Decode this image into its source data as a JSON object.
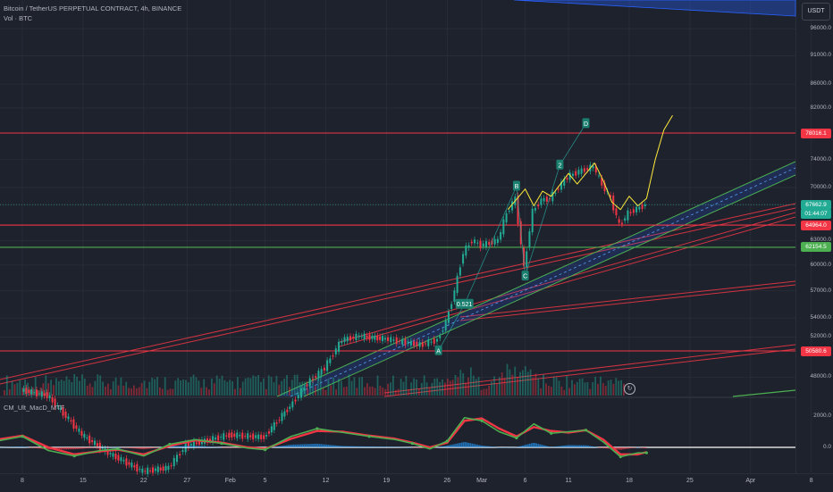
{
  "header": {
    "title": "Bitcoin / TetherUS PERPETUAL CONTRACT, 4h, BINANCE",
    "volume_label": "Vol · BTC",
    "indicator_label": "CM_Ult_MacD_MTF",
    "currency_button": "USDT"
  },
  "colors": {
    "background": "#1e222d",
    "grid": "#2a2e39",
    "up": "#22ab94",
    "down": "#f23645",
    "hline_red": "#f23645",
    "hline_green": "#4caf50",
    "pattern": "#26a69a",
    "projection": "#ffeb3b",
    "channel_blue": "#2962ff"
  },
  "chart_data": {
    "type": "candlestick",
    "symbol": "BTCUSDT.P",
    "timeframe": "4h",
    "exchange": "BINANCE",
    "price_axis": {
      "ticks": [
        "96000.0",
        "91000.0",
        "86000.0",
        "82000.0",
        "78016.1",
        "74000.0",
        "70000.0",
        "67662.9",
        "64964.0",
        "63000.0",
        "62154.5",
        "60000.0",
        "57000.0",
        "54000.0",
        "52000.0",
        "50580.6",
        "48000.0"
      ],
      "scale": "log",
      "range": [
        46500,
        100000
      ]
    },
    "time_axis": {
      "labels": [
        "8",
        "15",
        "22",
        "27",
        "Feb",
        "5",
        "12",
        "19",
        "26",
        "Mar",
        "6",
        "11",
        "18",
        "25",
        "Apr",
        "8"
      ],
      "x_dates": [
        "2024-01-08",
        "2024-01-15",
        "2024-01-22",
        "2024-01-27",
        "2024-02-01",
        "2024-02-05",
        "2024-02-12",
        "2024-02-19",
        "2024-02-26",
        "2024-03-01",
        "2024-03-06",
        "2024-03-11",
        "2024-03-18",
        "2024-03-25",
        "2024-04-01",
        "2024-04-08"
      ]
    },
    "price_series": [
      {
        "date": "2024-01-08",
        "close": 46800
      },
      {
        "date": "2024-01-11",
        "close": 46300
      },
      {
        "date": "2024-01-15",
        "close": 42800
      },
      {
        "date": "2024-01-18",
        "close": 41300
      },
      {
        "date": "2024-01-22",
        "close": 39800
      },
      {
        "date": "2024-01-25",
        "close": 40100
      },
      {
        "date": "2024-01-27",
        "close": 41900
      },
      {
        "date": "2024-02-01",
        "close": 42800
      },
      {
        "date": "2024-02-05",
        "close": 42600
      },
      {
        "date": "2024-02-08",
        "close": 45300
      },
      {
        "date": "2024-02-10",
        "close": 47400
      },
      {
        "date": "2024-02-12",
        "close": 48900
      },
      {
        "date": "2024-02-14",
        "close": 51700
      },
      {
        "date": "2024-02-16",
        "close": 52100
      },
      {
        "date": "2024-02-19",
        "close": 51800
      },
      {
        "date": "2024-02-21",
        "close": 51500
      },
      {
        "date": "2024-02-23",
        "close": 51200
      },
      {
        "date": "2024-02-25",
        "close": 51700
      },
      {
        "date": "2024-02-26",
        "close": 53500
      },
      {
        "date": "2024-02-27",
        "close": 57000
      },
      {
        "date": "2024-02-28",
        "close": 61500
      },
      {
        "date": "2024-02-29",
        "close": 63000
      },
      {
        "date": "2024-03-01",
        "close": 62400
      },
      {
        "date": "2024-03-03",
        "close": 63000
      },
      {
        "date": "2024-03-04",
        "close": 66500
      },
      {
        "date": "2024-03-05",
        "close": 68500
      },
      {
        "date": "2024-03-06",
        "close": 59500
      },
      {
        "date": "2024-03-07",
        "close": 66800
      },
      {
        "date": "2024-03-08",
        "close": 68300
      },
      {
        "date": "2024-03-09",
        "close": 68500
      },
      {
        "date": "2024-03-11",
        "close": 71500
      },
      {
        "date": "2024-03-12",
        "close": 72100
      },
      {
        "date": "2024-03-14",
        "close": 73000
      },
      {
        "date": "2024-03-15",
        "close": 70400
      },
      {
        "date": "2024-03-16",
        "close": 68500
      },
      {
        "date": "2024-03-17",
        "close": 64900
      },
      {
        "date": "2024-03-18",
        "close": 66500
      },
      {
        "date": "2024-03-19",
        "close": 67100
      },
      {
        "date": "2024-03-20",
        "close": 67663
      }
    ],
    "projection_path": [
      {
        "date": "2024-03-04",
        "close": 67000
      },
      {
        "date": "2024-03-06",
        "close": 69800
      },
      {
        "date": "2024-03-07",
        "close": 67500
      },
      {
        "date": "2024-03-08",
        "close": 69500
      },
      {
        "date": "2024-03-09",
        "close": 68800
      },
      {
        "date": "2024-03-11",
        "close": 72000
      },
      {
        "date": "2024-03-12",
        "close": 70500
      },
      {
        "date": "2024-03-14",
        "close": 73500
      },
      {
        "date": "2024-03-15",
        "close": 71000
      },
      {
        "date": "2024-03-16",
        "close": 68000
      },
      {
        "date": "2024-03-17",
        "close": 67000
      },
      {
        "date": "2024-03-18",
        "close": 68800
      },
      {
        "date": "2024-03-19",
        "close": 67500
      },
      {
        "date": "2024-03-20",
        "close": 68500
      },
      {
        "date": "2024-03-21",
        "close": 74000
      },
      {
        "date": "2024-03-22",
        "close": 78500
      },
      {
        "date": "2024-03-23",
        "close": 80800
      }
    ],
    "horizontal_levels": [
      {
        "price": 78016.1,
        "label": "78016.1",
        "kind": "resistance",
        "color": "#f23645"
      },
      {
        "price": 64964.0,
        "label": "64964.0",
        "kind": "support",
        "color": "#f23645"
      },
      {
        "price": 62154.5,
        "label": "62154.5",
        "kind": "support",
        "color": "#4caf50"
      },
      {
        "price": 50580.6,
        "label": "50580.6",
        "kind": "support",
        "color": "#f23645"
      }
    ],
    "current_price": {
      "price": 67662.9,
      "label": "67662.9",
      "countdown": "01:44:07"
    },
    "pattern_points": [
      {
        "label": "A",
        "date": "2024-02-25",
        "price": 50600
      },
      {
        "label": "0.521",
        "date": "2024-02-28",
        "price": 55500
      },
      {
        "label": "B",
        "date": "2024-03-05",
        "price": 70200
      },
      {
        "label": "C",
        "date": "2024-03-06",
        "price": 58700
      },
      {
        "label": "2",
        "date": "2024-03-10",
        "price": 73200
      },
      {
        "label": "D",
        "date": "2024-03-13",
        "price": 79500
      }
    ],
    "macd": {
      "name": "CM_Ult_MacD_MTF",
      "ticks": [
        "2000.0",
        "0.0"
      ],
      "range": [
        -1100,
        2500
      ],
      "macd_line": [
        {
          "date": "2024-01-04",
          "value": 300
        },
        {
          "date": "2024-01-08",
          "value": 700
        },
        {
          "date": "2024-01-11",
          "value": -200
        },
        {
          "date": "2024-01-14",
          "value": -550
        },
        {
          "date": "2024-01-17",
          "value": -200
        },
        {
          "date": "2024-01-19",
          "value": -100
        },
        {
          "date": "2024-01-22",
          "value": -550
        },
        {
          "date": "2024-01-25",
          "value": 200
        },
        {
          "date": "2024-01-28",
          "value": 500
        },
        {
          "date": "2024-01-31",
          "value": 250
        },
        {
          "date": "2024-02-03",
          "value": -50
        },
        {
          "date": "2024-02-05",
          "value": -150
        },
        {
          "date": "2024-02-08",
          "value": 700
        },
        {
          "date": "2024-02-11",
          "value": 1200
        },
        {
          "date": "2024-02-14",
          "value": 950
        },
        {
          "date": "2024-02-17",
          "value": 700
        },
        {
          "date": "2024-02-20",
          "value": 500
        },
        {
          "date": "2024-02-22",
          "value": 250
        },
        {
          "date": "2024-02-24",
          "value": -100
        },
        {
          "date": "2024-02-26",
          "value": 400
        },
        {
          "date": "2024-02-28",
          "value": 1900
        },
        {
          "date": "2024-03-01",
          "value": 1700
        },
        {
          "date": "2024-03-03",
          "value": 1000
        },
        {
          "date": "2024-03-05",
          "value": 600
        },
        {
          "date": "2024-03-07",
          "value": 1500
        },
        {
          "date": "2024-03-09",
          "value": 900
        },
        {
          "date": "2024-03-11",
          "value": 1000
        },
        {
          "date": "2024-03-13",
          "value": 1100
        },
        {
          "date": "2024-03-15",
          "value": 350
        },
        {
          "date": "2024-03-17",
          "value": -600
        },
        {
          "date": "2024-03-19",
          "value": -350
        },
        {
          "date": "2024-03-20",
          "value": -350
        }
      ],
      "signal_line": [
        {
          "date": "2024-01-04",
          "value": 400
        },
        {
          "date": "2024-01-08",
          "value": 750
        },
        {
          "date": "2024-01-11",
          "value": 0
        },
        {
          "date": "2024-01-14",
          "value": -450
        },
        {
          "date": "2024-01-17",
          "value": -250
        },
        {
          "date": "2024-01-19",
          "value": -150
        },
        {
          "date": "2024-01-22",
          "value": -450
        },
        {
          "date": "2024-01-25",
          "value": 100
        },
        {
          "date": "2024-01-28",
          "value": 450
        },
        {
          "date": "2024-01-31",
          "value": 300
        },
        {
          "date": "2024-02-03",
          "value": 0
        },
        {
          "date": "2024-02-05",
          "value": -100
        },
        {
          "date": "2024-02-08",
          "value": 550
        },
        {
          "date": "2024-02-11",
          "value": 1050
        },
        {
          "date": "2024-02-14",
          "value": 1000
        },
        {
          "date": "2024-02-17",
          "value": 750
        },
        {
          "date": "2024-02-20",
          "value": 550
        },
        {
          "date": "2024-02-22",
          "value": 300
        },
        {
          "date": "2024-02-24",
          "value": 0
        },
        {
          "date": "2024-02-26",
          "value": 300
        },
        {
          "date": "2024-02-28",
          "value": 1700
        },
        {
          "date": "2024-03-01",
          "value": 1850
        },
        {
          "date": "2024-03-03",
          "value": 1200
        },
        {
          "date": "2024-03-05",
          "value": 700
        },
        {
          "date": "2024-03-07",
          "value": 1300
        },
        {
          "date": "2024-03-09",
          "value": 1050
        },
        {
          "date": "2024-03-11",
          "value": 950
        },
        {
          "date": "2024-03-13",
          "value": 1100
        },
        {
          "date": "2024-03-15",
          "value": 500
        },
        {
          "date": "2024-03-17",
          "value": -450
        },
        {
          "date": "2024-03-19",
          "value": -450
        },
        {
          "date": "2024-03-20",
          "value": -300
        }
      ]
    },
    "grid": true
  }
}
